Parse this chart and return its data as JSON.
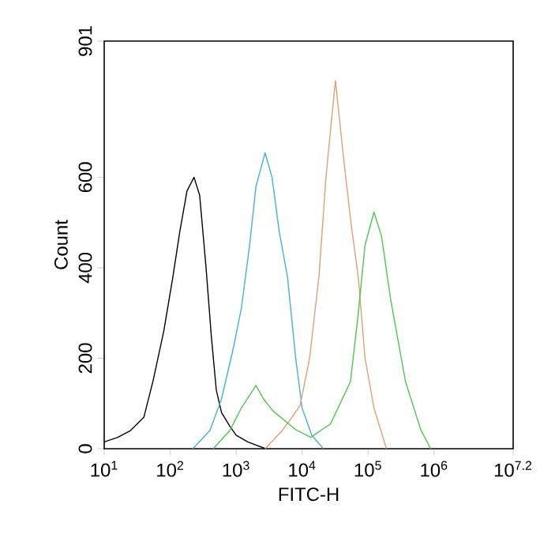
{
  "chart_data": {
    "type": "line",
    "xlabel": "FITC-H",
    "ylabel": "Count",
    "log": "x",
    "marker": "none",
    "line_style": "solid",
    "xlim": [
      10,
      15848932
    ],
    "ylim": [
      0,
      901
    ],
    "xticks": [
      {
        "value": 10,
        "label": "10$^{1}$"
      },
      {
        "value": 100,
        "label": "10$^{2}$"
      },
      {
        "value": 1000,
        "label": "10$^{3}$"
      },
      {
        "value": 10000,
        "label": "10$^{4}$"
      },
      {
        "value": 100000,
        "label": "10$^{5}$"
      },
      {
        "value": 1000000,
        "label": "10$^{6}$"
      },
      {
        "value": 15848932,
        "label": "10$^{7.2}$"
      }
    ],
    "yticks": [
      0,
      200,
      400,
      600,
      901
    ],
    "series": [
      {
        "color": "#000000",
        "x": [
          10,
          16,
          25,
          40,
          55,
          80,
          110,
          140,
          180,
          230,
          280,
          350,
          420,
          500,
          600,
          800,
          1000,
          1500,
          2800
        ],
        "values": [
          15,
          25,
          40,
          70,
          150,
          260,
          380,
          480,
          570,
          600,
          560,
          400,
          250,
          130,
          80,
          50,
          30,
          15,
          0
        ]
      },
      {
        "color": "#3fb4d8",
        "x": [
          220,
          400,
          600,
          900,
          1200,
          1600,
          2000,
          2750,
          3500,
          4500,
          6000,
          8000,
          10000,
          14000,
          21000
        ],
        "values": [
          0,
          40,
          110,
          220,
          310,
          450,
          580,
          654,
          600,
          480,
          380,
          200,
          90,
          30,
          0
        ]
      },
      {
        "color": "#e0a070",
        "x": [
          2750,
          5000,
          9300,
          13000,
          18000,
          23000,
          32000,
          42000,
          55000,
          71000,
          90000,
          123000,
          190000
        ],
        "values": [
          0,
          40,
          95,
          200,
          380,
          600,
          814,
          650,
          500,
          380,
          200,
          90,
          0
        ]
      },
      {
        "color": "#4cc94c",
        "x": [
          450,
          800,
          1200,
          2000,
          2600,
          3600,
          8000,
          13500,
          27000,
          54000,
          70000,
          90000,
          123000,
          160000,
          220000,
          370000,
          630000,
          890000
        ],
        "values": [
          0,
          40,
          90,
          140,
          110,
          84,
          42,
          25,
          55,
          148,
          290,
          450,
          523,
          470,
          330,
          148,
          42,
          0
        ]
      }
    ]
  }
}
